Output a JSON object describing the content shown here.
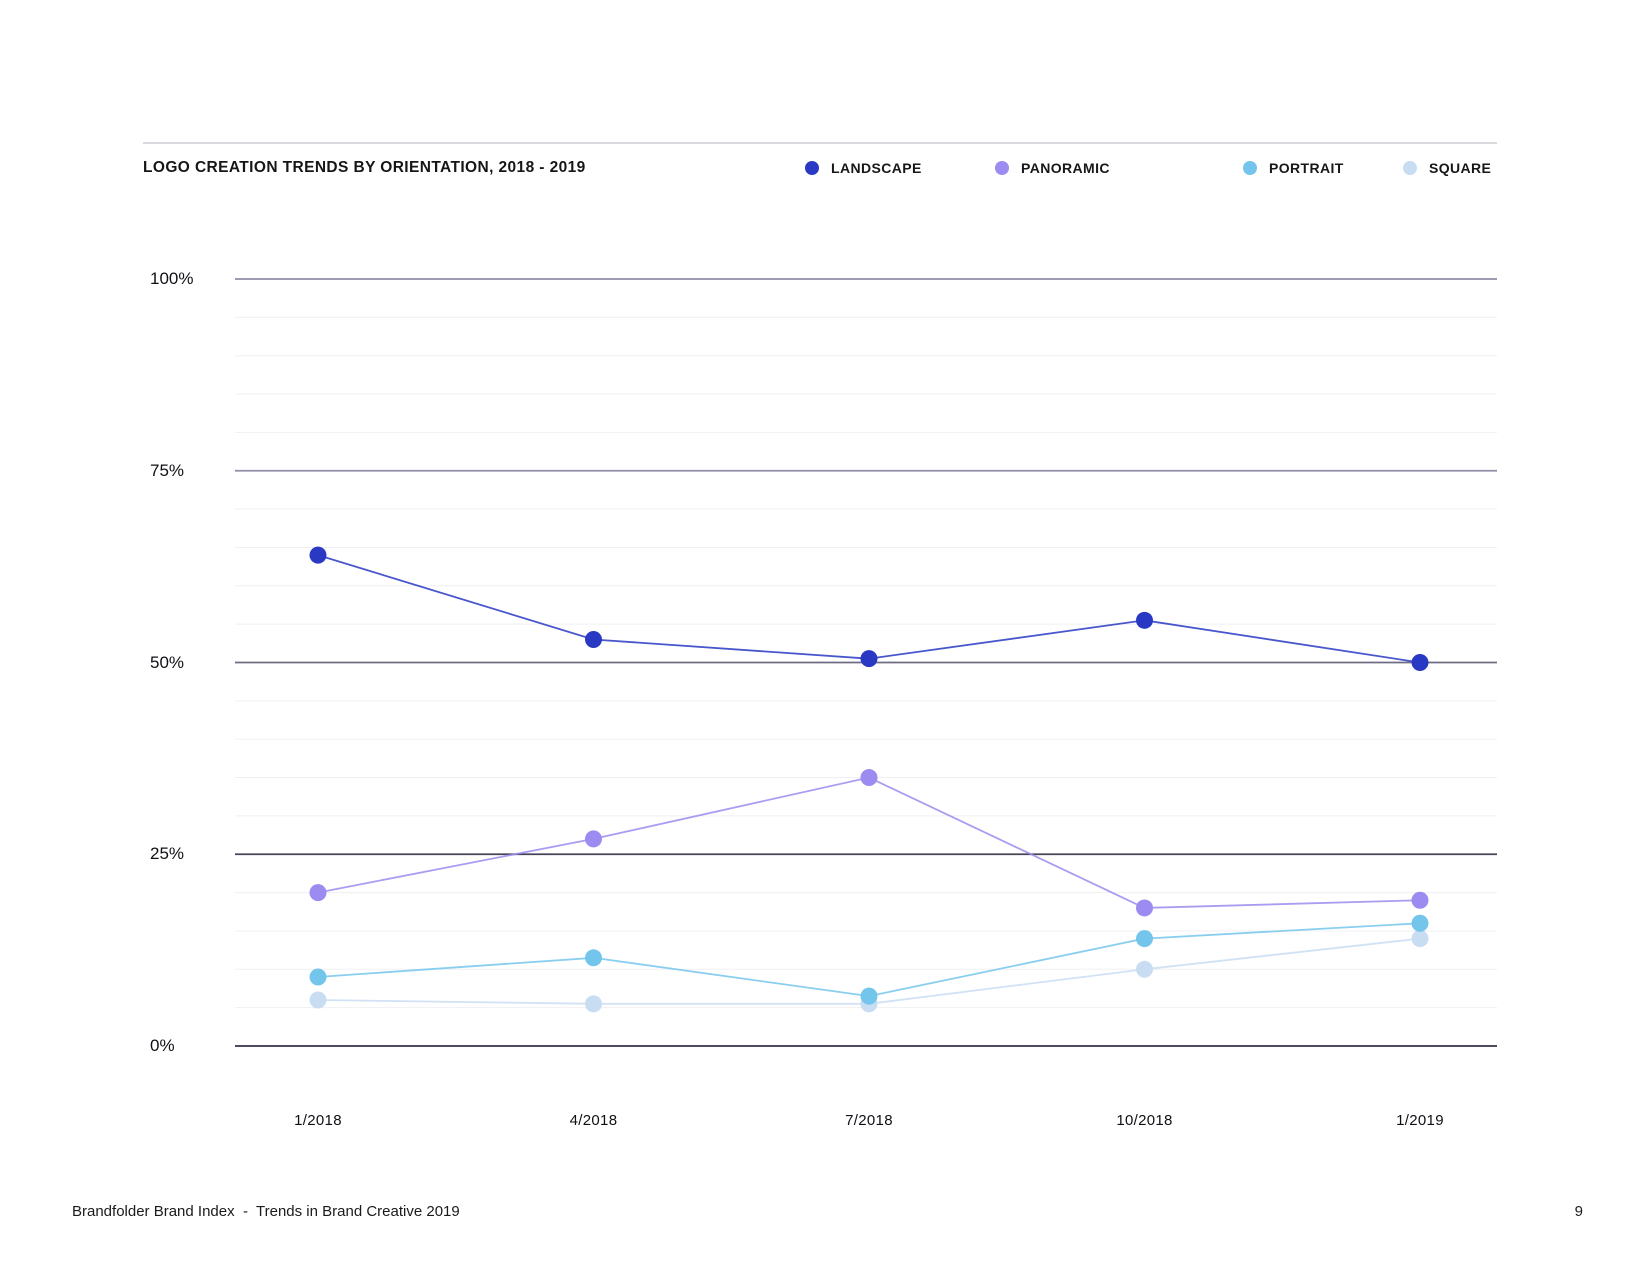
{
  "header": {
    "title": "LOGO CREATION TRENDS BY ORIENTATION, 2018 - 2019"
  },
  "chart_data": {
    "type": "line",
    "title": "LOGO CREATION TRENDS BY ORIENTATION, 2018 - 2019",
    "categories": [
      "1/2018",
      "4/2018",
      "7/2018",
      "10/2018",
      "1/2019"
    ],
    "series": [
      {
        "name": "LANDSCAPE",
        "color": "#2939c4",
        "values": [
          64,
          53,
          50.5,
          55.5,
          50
        ]
      },
      {
        "name": "PANORAMIC",
        "color": "#9c8bf0",
        "values": [
          20,
          27,
          35,
          18,
          19
        ]
      },
      {
        "name": "PORTRAIT",
        "color": "#74c5ec",
        "values": [
          9,
          11.5,
          6.5,
          14,
          16
        ]
      },
      {
        "name": "SQUARE",
        "color": "#c8ddf2",
        "values": [
          6,
          5.5,
          5.5,
          10,
          14
        ]
      }
    ],
    "ylim": [
      0,
      100
    ],
    "y_ticks": [
      {
        "value": 0,
        "label": "0%"
      },
      {
        "value": 25,
        "label": "25%"
      },
      {
        "value": 50,
        "label": "50%"
      },
      {
        "value": 75,
        "label": "75%"
      },
      {
        "value": 100,
        "label": "100%"
      }
    ],
    "minor_grid_step": 5,
    "grid": true,
    "legend_position": "top-right"
  },
  "footer": {
    "left": "Brandfolder Brand Index  -  Trends in Brand Creative 2019",
    "page": "9"
  }
}
